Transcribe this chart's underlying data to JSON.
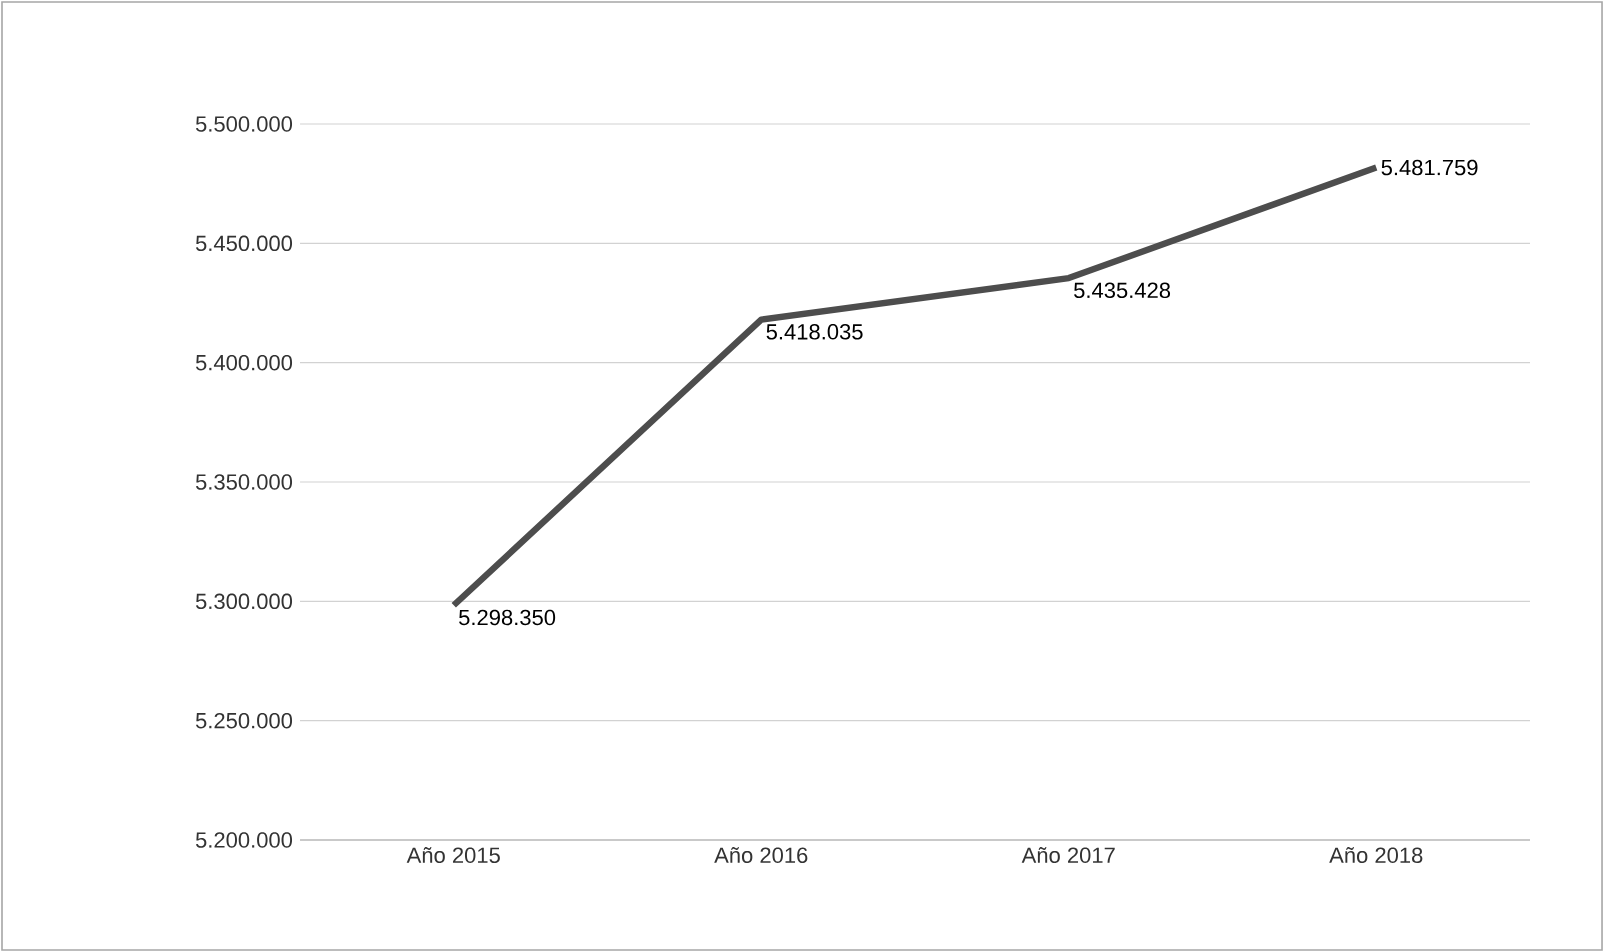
{
  "chart_data": {
    "type": "line",
    "categories": [
      "Año 2015",
      "Año 2016",
      "Año 2017",
      "Año 2018"
    ],
    "values": [
      5298350,
      5418035,
      5435428,
      5481759
    ],
    "value_labels": [
      "5.298.350",
      "5.418.035",
      "5.435.428",
      "5.481.759"
    ],
    "color": "#4d4d4d",
    "marker": "none",
    "line_style": "solid",
    "grid": "y",
    "ylim": [
      5200000,
      5500000
    ],
    "yticks": [
      {
        "value": 5200000,
        "label": "5.200.000"
      },
      {
        "value": 5250000,
        "label": "5.250.000"
      },
      {
        "value": 5300000,
        "label": "5.300.000"
      },
      {
        "value": 5350000,
        "label": "5.350.000"
      },
      {
        "value": 5400000,
        "label": "5.400.000"
      },
      {
        "value": 5450000,
        "label": "5.450.000"
      },
      {
        "value": 5500000,
        "label": "5.500.000"
      }
    ]
  }
}
